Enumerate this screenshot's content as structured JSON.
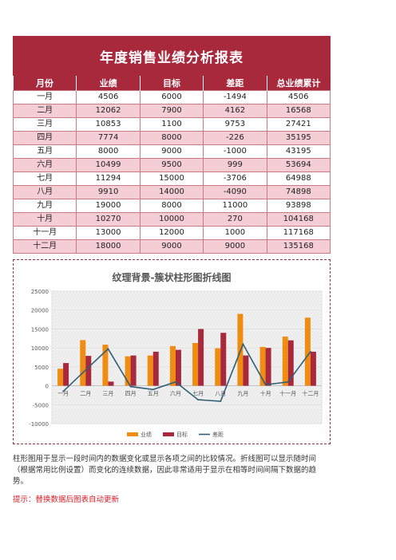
{
  "report": {
    "title": "年度销售业绩分析报表",
    "columns": [
      "月份",
      "业绩",
      "目标",
      "差距",
      "总业绩累计"
    ],
    "rows": [
      [
        "一月",
        "4506",
        "6000",
        "-1494",
        "4506"
      ],
      [
        "二月",
        "12062",
        "7900",
        "4162",
        "16568"
      ],
      [
        "三月",
        "10853",
        "1100",
        "9753",
        "27421"
      ],
      [
        "四月",
        "7774",
        "8000",
        "-226",
        "35195"
      ],
      [
        "五月",
        "8000",
        "9000",
        "-1000",
        "43195"
      ],
      [
        "六月",
        "10499",
        "9500",
        "999",
        "53694"
      ],
      [
        "七月",
        "11294",
        "15000",
        "-3706",
        "64988"
      ],
      [
        "八月",
        "9910",
        "14000",
        "-4090",
        "74898"
      ],
      [
        "九月",
        "19000",
        "8000",
        "11000",
        "93898"
      ],
      [
        "十月",
        "10270",
        "10000",
        "270",
        "104168"
      ],
      [
        "十一月",
        "13000",
        "12000",
        "1000",
        "117168"
      ],
      [
        "十二月",
        "18000",
        "9000",
        "9000",
        "135168"
      ]
    ]
  },
  "chart_data": {
    "type": "bar",
    "title": "纹理背景-簇状柱形图折线图",
    "categories": [
      "一月",
      "二月",
      "三月",
      "四月",
      "五月",
      "六月",
      "七月",
      "八月",
      "九月",
      "十月",
      "十一月",
      "十二月"
    ],
    "series": [
      {
        "name": "业绩",
        "type": "bar",
        "color": "#f08c12",
        "values": [
          4506,
          12062,
          10853,
          7774,
          8000,
          10499,
          11294,
          9910,
          19000,
          10270,
          13000,
          18000
        ]
      },
      {
        "name": "目标",
        "type": "bar",
        "color": "#a8283c",
        "values": [
          6000,
          7900,
          1100,
          8000,
          9000,
          9500,
          15000,
          14000,
          8000,
          10000,
          12000,
          9000
        ]
      },
      {
        "name": "差距",
        "type": "line",
        "color": "#2f5f78",
        "values": [
          -1494,
          4162,
          9753,
          -226,
          -1000,
          999,
          -3706,
          -4090,
          11000,
          270,
          1000,
          9000
        ]
      }
    ],
    "ylim": [
      -10000,
      25000
    ],
    "yticks": [
      -10000,
      -5000,
      0,
      5000,
      10000,
      15000,
      20000,
      25000
    ],
    "grid": true,
    "legend": "bottom"
  },
  "description": "柱形图用于显示一段时间内的数据变化或显示各项之间的比较情况。折线图可以显示随时间（根据常用比例设置）而变化的连续数据，因此非常适用于显示在相等时间间隔下数据的趋势。",
  "hint": "提示：替换数据后图表自动更新"
}
